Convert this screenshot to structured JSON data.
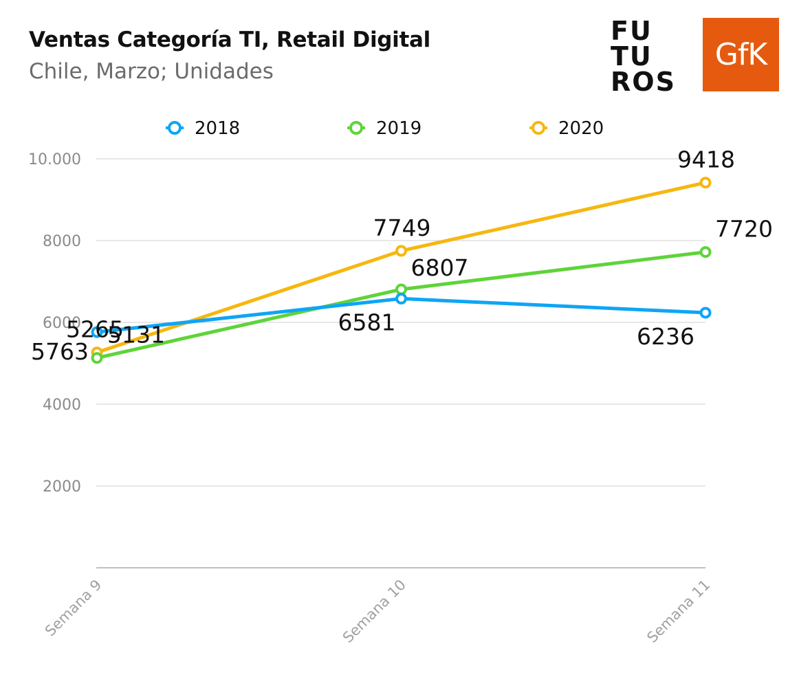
{
  "header": {
    "title": "Ventas Categoría TI, Retail Digital",
    "subtitle": "Chile, Marzo; Unidades"
  },
  "logos": {
    "futuros_lines": [
      "FU",
      "TU",
      "ROS"
    ],
    "gfk_text": "GfK",
    "gfk_color": "#e55a0f"
  },
  "chart_data": {
    "type": "line",
    "title": "Ventas Categoría TI, Retail Digital",
    "subtitle": "Chile, Marzo; Unidades",
    "categories": [
      "Semana 9",
      "Semana 10",
      "Semana 11"
    ],
    "ylim": [
      0,
      10000
    ],
    "yticks": [
      2000,
      4000,
      6000,
      8000,
      10000
    ],
    "ytick_labels": [
      "2000",
      "4000",
      "6000",
      "8000",
      "10.000"
    ],
    "grid": true,
    "legend_position": "top",
    "series": [
      {
        "name": "2018",
        "color": "#0ea5f5",
        "values": [
          5763,
          6581,
          6236
        ],
        "labels": [
          "5763",
          "6581",
          "6236"
        ]
      },
      {
        "name": "2019",
        "color": "#5ed43a",
        "values": [
          5131,
          6807,
          7720
        ],
        "labels": [
          "5131",
          "6807",
          "7720"
        ]
      },
      {
        "name": "2020",
        "color": "#f6b70f",
        "values": [
          5265,
          7749,
          9418
        ],
        "labels": [
          "5265",
          "7749",
          "9418"
        ]
      }
    ]
  }
}
